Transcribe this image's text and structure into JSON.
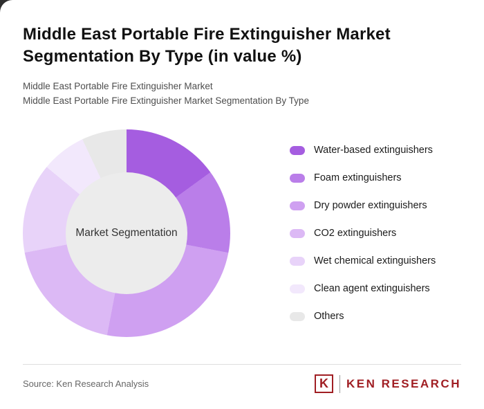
{
  "header": {
    "title": "Middle East Portable Fire Extinguisher Market Segmentation By Type (in value %)",
    "subtitle1": "Middle East Portable Fire Extinguisher Market",
    "subtitle2": "Middle East Portable Fire Extinguisher Market Segmentation By Type"
  },
  "chart_data": {
    "type": "pie",
    "subtype": "donut",
    "title": "Middle East Portable Fire Extinguisher Market Segmentation By Type (in value %)",
    "center_label": "Market Segmentation",
    "categories": [
      "Water-based extinguishers",
      "Foam extinguishers",
      "Dry powder extinguishers",
      "CO2 extinguishers",
      "Wet chemical extinguishers",
      "Clean agent extinguishers",
      "Others"
    ],
    "values": [
      15,
      13,
      25,
      19,
      14,
      7,
      7
    ],
    "colors": [
      "#a55de0",
      "#ba7ee9",
      "#cfa0f1",
      "#dcb9f5",
      "#e8d3f9",
      "#f2e8fc",
      "#e8e8e8"
    ],
    "start_angle_deg": 0,
    "direction": "clockwise",
    "legend_position": "right",
    "hole_color": "#ececec"
  },
  "footer": {
    "source": "Source: Ken Research Analysis",
    "logo_k": "K",
    "logo_text": "KEN RESEARCH",
    "logo_color": "#a01e23"
  }
}
